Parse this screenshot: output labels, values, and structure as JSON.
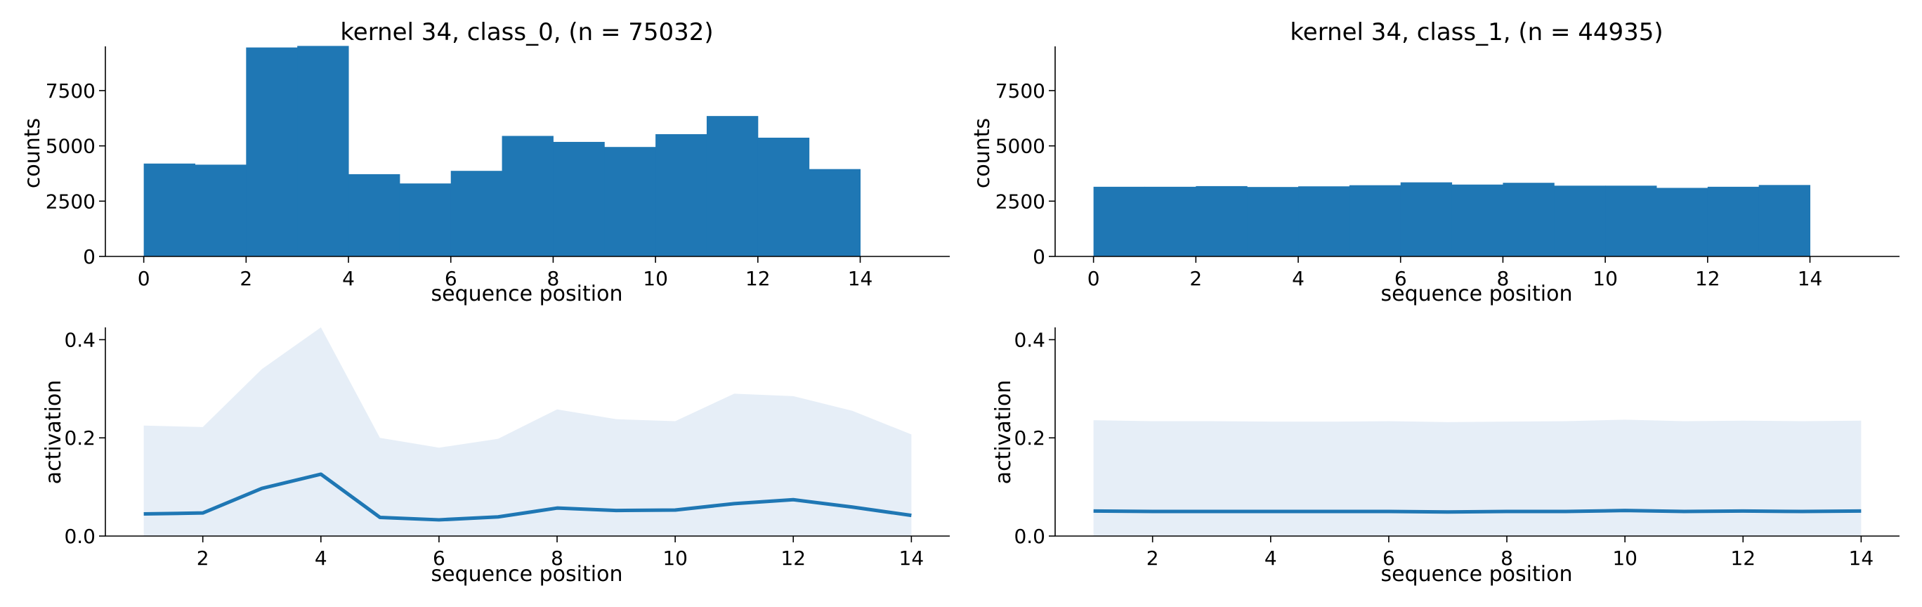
{
  "colors": {
    "bar": "#1f77b4",
    "line": "#1f77b4",
    "band": "#e6eef7",
    "axis": "#000000"
  },
  "chart_data": [
    {
      "type": "bar",
      "title": "kernel 34, class_0, (n = 75032)",
      "xlabel": "sequence position",
      "ylabel": "counts",
      "xlim": [
        -0.75,
        15.75
      ],
      "ylim": [
        0,
        9500
      ],
      "xticks": [
        "0",
        "2",
        "4",
        "6",
        "8",
        "10",
        "12",
        "14"
      ],
      "yticks": [
        "0",
        "2500",
        "5000",
        "7500"
      ],
      "bin_edges": [
        0,
        1,
        2,
        3,
        4,
        5,
        6,
        7,
        8,
        9,
        10,
        11,
        12,
        13,
        14
      ],
      "values": [
        4200,
        4150,
        9450,
        9520,
        3720,
        3300,
        3870,
        5450,
        5180,
        4950,
        5530,
        6350,
        5370,
        3950
      ]
    },
    {
      "type": "bar",
      "title": "kernel 34, class_1, (n = 44935)",
      "xlabel": "sequence position",
      "ylabel": "counts",
      "xlim": [
        -0.75,
        15.75
      ],
      "ylim": [
        0,
        9500
      ],
      "xticks": [
        "0",
        "2",
        "4",
        "6",
        "8",
        "10",
        "12",
        "14"
      ],
      "yticks": [
        "0",
        "2500",
        "5000",
        "7500"
      ],
      "bin_edges": [
        0,
        1,
        2,
        3,
        4,
        5,
        6,
        7,
        8,
        9,
        10,
        11,
        12,
        13,
        14
      ],
      "values": [
        3150,
        3150,
        3180,
        3140,
        3170,
        3220,
        3350,
        3250,
        3330,
        3200,
        3200,
        3100,
        3150,
        3230
      ]
    },
    {
      "type": "area",
      "xlabel": "sequence position",
      "ylabel": "activation",
      "xlim": [
        0.35,
        14.65
      ],
      "ylim": [
        0,
        0.425
      ],
      "xticks": [
        "2",
        "4",
        "6",
        "8",
        "10",
        "12",
        "14"
      ],
      "yticks": [
        "0.0",
        "0.2",
        "0.4"
      ],
      "x": [
        1,
        2,
        3,
        4,
        5,
        6,
        7,
        8,
        9,
        10,
        11,
        12,
        13,
        14
      ],
      "mean": [
        0.045,
        0.047,
        0.097,
        0.126,
        0.038,
        0.033,
        0.039,
        0.057,
        0.052,
        0.053,
        0.066,
        0.074,
        0.059,
        0.042
      ],
      "band_upper": [
        0.225,
        0.222,
        0.34,
        0.425,
        0.2,
        0.18,
        0.198,
        0.258,
        0.238,
        0.234,
        0.29,
        0.285,
        0.255,
        0.207
      ]
    },
    {
      "type": "area",
      "xlabel": "sequence position",
      "ylabel": "activation",
      "xlim": [
        0.35,
        14.65
      ],
      "ylim": [
        0,
        0.425
      ],
      "xticks": [
        "2",
        "4",
        "6",
        "8",
        "10",
        "12",
        "14"
      ],
      "yticks": [
        "0.0",
        "0.2",
        "0.4"
      ],
      "x": [
        1,
        2,
        3,
        4,
        5,
        6,
        7,
        8,
        9,
        10,
        11,
        12,
        13,
        14
      ],
      "mean": [
        0.051,
        0.05,
        0.05,
        0.05,
        0.05,
        0.05,
        0.049,
        0.05,
        0.05,
        0.052,
        0.05,
        0.051,
        0.05,
        0.051
      ],
      "band_upper": [
        0.236,
        0.234,
        0.234,
        0.233,
        0.233,
        0.234,
        0.232,
        0.233,
        0.234,
        0.237,
        0.234,
        0.235,
        0.234,
        0.235
      ]
    }
  ]
}
